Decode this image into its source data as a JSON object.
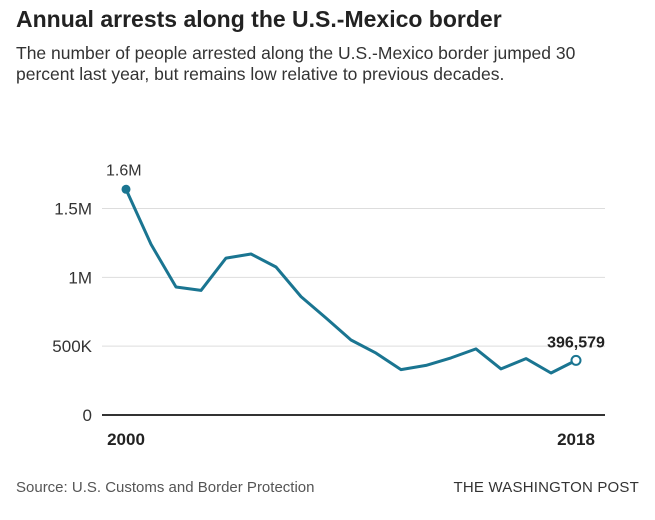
{
  "chart_data": {
    "type": "line",
    "title": "Annual arrests along the U.S.-Mexico border",
    "subtitle": "The number of people arrested along the U.S.-Mexico border jumped 30 percent last year, but remains low relative to previous decades.",
    "xlabel": "",
    "ylabel": "",
    "x": [
      2000,
      2001,
      2002,
      2003,
      2004,
      2005,
      2006,
      2007,
      2008,
      2009,
      2010,
      2011,
      2012,
      2013,
      2014,
      2015,
      2016,
      2017,
      2018
    ],
    "series": [
      {
        "name": "Border arrests",
        "values": [
          1640000,
          1240000,
          930000,
          905000,
          1140000,
          1170000,
          1075000,
          860000,
          705000,
          545000,
          450000,
          330000,
          360000,
          415000,
          480000,
          335000,
          410000,
          305000,
          396579
        ]
      }
    ],
    "ylim": [
      0,
      1700000
    ],
    "yticks": [
      0,
      500000,
      1000000,
      1500000
    ],
    "ytick_labels": [
      "0",
      "500K",
      "1M",
      "1.5M"
    ],
    "xtick_labels": [
      "2000",
      "2018"
    ],
    "annotations": {
      "start": "1.6M",
      "end": "396,579"
    },
    "grid": true,
    "line_color": "#1a7591"
  },
  "footer": {
    "source": "Source: U.S. Customs and Border Protection",
    "credit": "THE WASHINGTON POST"
  }
}
